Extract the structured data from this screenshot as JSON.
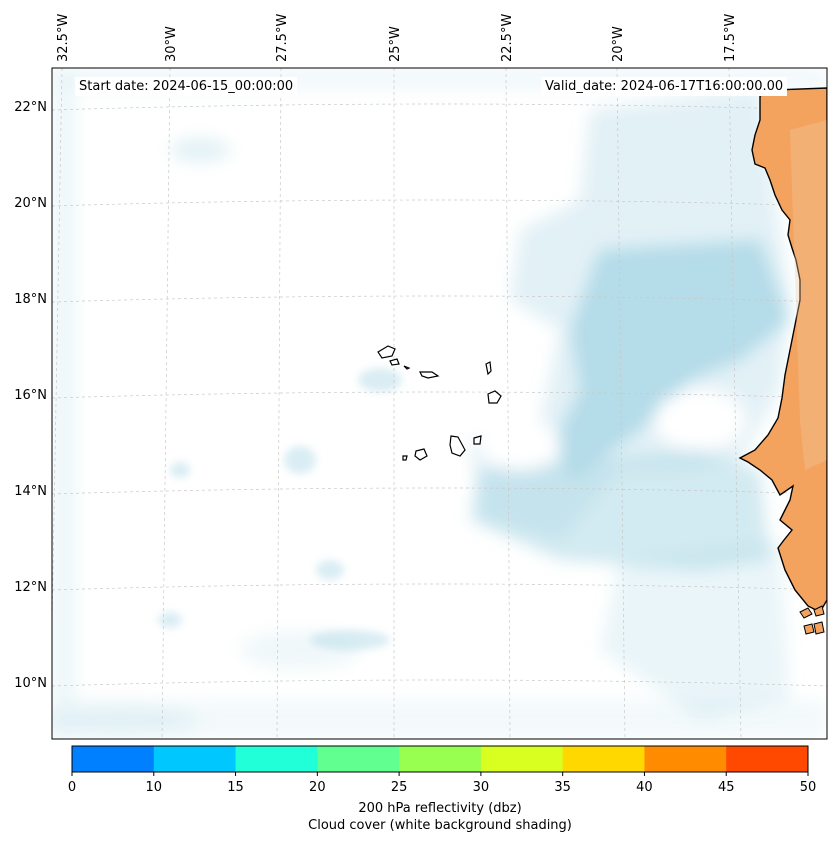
{
  "map": {
    "lon_ticks": [
      "32.5°W",
      "30°W",
      "27.5°W",
      "25°W",
      "22.5°W",
      "20°W",
      "17.5°W"
    ],
    "lat_ticks": [
      "22°N",
      "20°N",
      "18°N",
      "16°N",
      "14°N",
      "12°N",
      "10°N"
    ],
    "start_date": "Start date: 2024-06-15_00:00:00",
    "valid_date": "Valid_date: 2024-06-17T16:00:00.00",
    "land_color": "#f4a35f",
    "cloud_color": "#add8e6",
    "coastline_color": "#000000",
    "gridlines": true
  },
  "colorbar": {
    "levels": [
      "0",
      "10",
      "15",
      "20",
      "25",
      "30",
      "35",
      "40",
      "45",
      "50"
    ],
    "colors": [
      "#0080ff",
      "#00c8ff",
      "#20ffd8",
      "#60ff90",
      "#98ff50",
      "#d8ff20",
      "#ffd800",
      "#ff8c00",
      "#ff4800"
    ],
    "title_line1": "200 hPa reflectivity (dbz)",
    "title_line2": "Cloud cover (white background shading)"
  }
}
